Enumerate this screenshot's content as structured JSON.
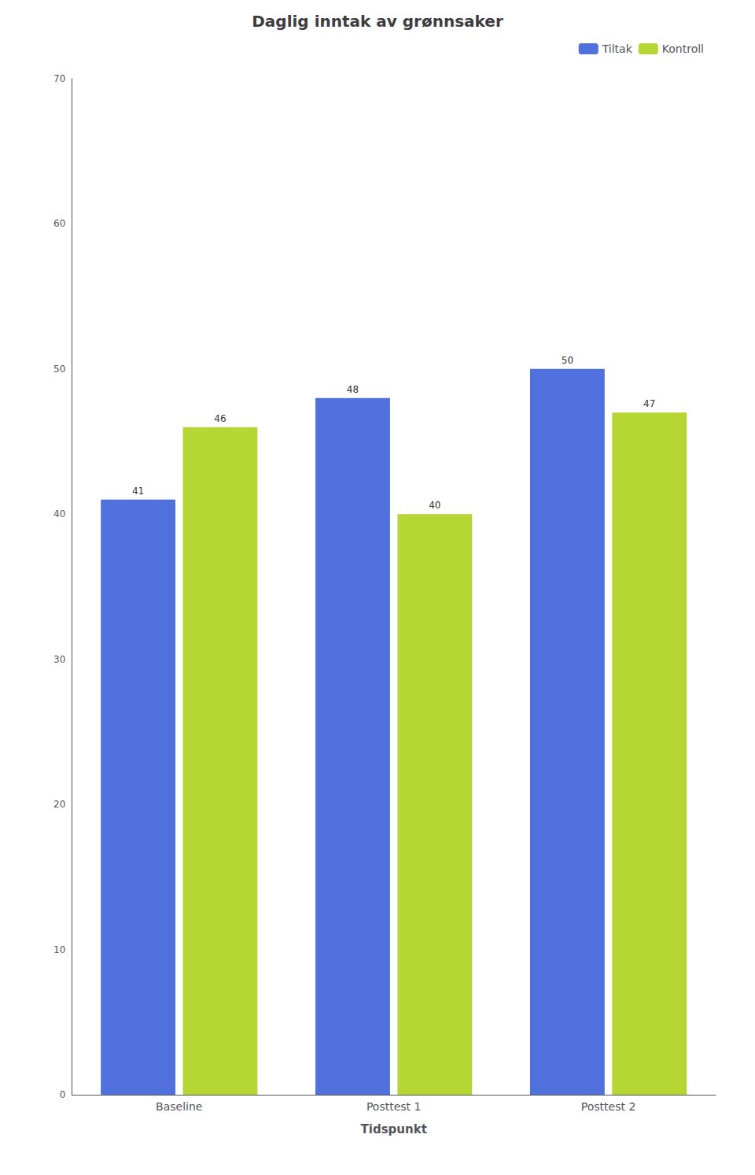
{
  "chart_data": {
    "type": "bar",
    "title": "Daglig inntak av grønnsaker",
    "xlabel": "Tidspunkt",
    "categories": [
      "Baseline",
      "Posttest 1",
      "Posttest 2"
    ],
    "series": [
      {
        "name": "Tiltak",
        "values": [
          41,
          48,
          50
        ]
      },
      {
        "name": "Kontroll",
        "values": [
          46,
          40,
          47
        ]
      }
    ],
    "ylim": [
      0,
      70
    ],
    "yticks": [
      0,
      10,
      20,
      30,
      40,
      50,
      60,
      70
    ],
    "grid": false,
    "legend": "upper right",
    "data_labels": true
  }
}
